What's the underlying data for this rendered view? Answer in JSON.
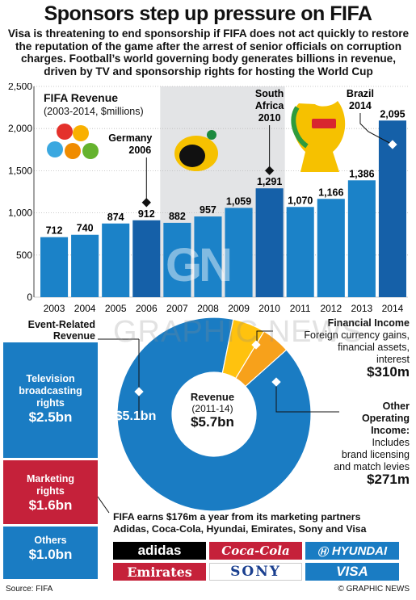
{
  "title": "Sponsors step up pressure on FIFA",
  "intro": "Visa is threatening to end sponsorship if FIFA does not act quickly to restore the reputation of the game after the arrest of senior officials on corruption charges. Football’s world governing body generates billions in revenue, driven by TV and sponsorship rights for hosting the World Cup",
  "colors": {
    "bar": "#1b82c8",
    "bar_dark": "#1560a8",
    "band": "#e3e4e6",
    "pie_blue": "#1a7cc3",
    "pie_yellow": "#ffc20e",
    "pie_orange": "#f7a11b",
    "red": "#c5213a",
    "lightblue": "#1a7cc3"
  },
  "chart_data": {
    "type": "bar",
    "title": "FIFA Revenue",
    "subtitle": "(2003-2014, $millions)",
    "categories": [
      "2003",
      "2004",
      "2005",
      "2006",
      "2007",
      "2008",
      "2009",
      "2010",
      "2011",
      "2012",
      "2013",
      "2014"
    ],
    "values": [
      712,
      740,
      874,
      912,
      882,
      957,
      1059,
      1291,
      1070,
      1166,
      1386,
      2095
    ],
    "yticks": [
      0,
      500,
      "1,000",
      "1,500",
      "2,000",
      "2,500"
    ],
    "ylim": [
      0,
      2500
    ],
    "annotations": [
      {
        "label": "Germany 2006",
        "category": "2006"
      },
      {
        "label": "South Africa 2010",
        "category": "2010"
      },
      {
        "label": "Brazil 2014",
        "category": "2014"
      }
    ]
  },
  "event_related": {
    "heading_line1": "Event-Related",
    "heading_line2": "Revenue",
    "segments": [
      {
        "label_l1": "Television",
        "label_l2": "broadcasting",
        "label_l3": "rights",
        "value": "$2.5bn"
      },
      {
        "label_l1": "Marketing",
        "label_l2": "rights",
        "value": "$1.6bn"
      },
      {
        "label_l1": "Others",
        "value": "$1.0bn"
      }
    ]
  },
  "donut": {
    "center_title": "Revenue",
    "center_period": "(2011-14)",
    "center_value": "$5.7bn",
    "main_value": "$5.1bn",
    "slices": [
      {
        "name": "Event-related",
        "value": 5.1
      },
      {
        "name": "Financial income",
        "value": 0.31
      },
      {
        "name": "Other operating income",
        "value": 0.271
      }
    ]
  },
  "financial_income": {
    "title": "Financial Income",
    "line1": "Foreign currency gains,",
    "line2": "financial assets,",
    "line3": "interest",
    "value": "$310m"
  },
  "other_income": {
    "title_l1": "Other",
    "title_l2": "Operating",
    "title_l3": "Income:",
    "line1": "Includes",
    "line2": "brand licensing",
    "line3": "and match levies",
    "value": "$271m"
  },
  "sponsors": {
    "caption_l1": "FIFA earns $176m a year from its marketing partners",
    "caption_l2": "Adidas, Coca-Cola, Hyundai, Emirates, Sony and Visa",
    "logos": [
      "adidas",
      "Coca-Cola",
      "HYUNDAI",
      "Emirates",
      "SONY",
      "VISA"
    ]
  },
  "watermark": "GRAPHIC NEWS",
  "watermark_mark": "GN",
  "source": "Source: FIFA",
  "copyright": "© GRAPHIC NEWS"
}
